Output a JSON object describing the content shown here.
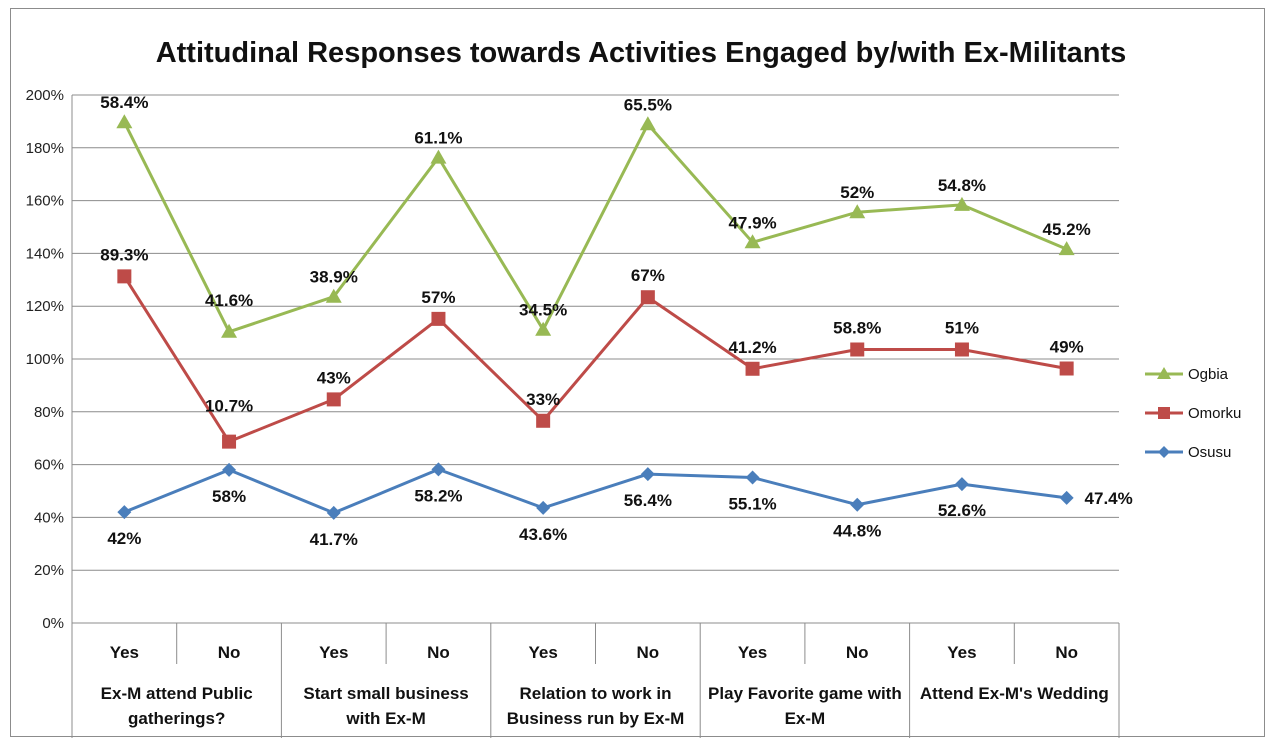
{
  "chart_data": {
    "type": "line",
    "title": "Attitudinal Responses towards Activities Engaged by/with Ex-Militants",
    "ylim": [
      0,
      200
    ],
    "yticks": [
      "0%",
      "20%",
      "40%",
      "60%",
      "80%",
      "100%",
      "120%",
      "140%",
      "160%",
      "180%",
      "200%"
    ],
    "grid": true,
    "legend_position": "right",
    "categories": [
      "Yes",
      "No",
      "Yes",
      "No",
      "Yes",
      "No",
      "Yes",
      "No",
      "Yes",
      "No"
    ],
    "groups": [
      "Ex-M attend Public gatherings?",
      "Start small business with Ex-M",
      "Relation to work in Business run by Ex-M",
      "Play Favorite game with Ex-M",
      "Attend Ex-M's Wedding"
    ],
    "series": [
      {
        "name": "Osusu",
        "color": "#4a7ebb",
        "marker": "diamond",
        "values": [
          42,
          58,
          41.7,
          58.2,
          43.6,
          56.4,
          55.1,
          44.8,
          52.6,
          47.4
        ],
        "labels": [
          "42%",
          "58%",
          "41.7%",
          "58.2%",
          "43.6%",
          "56.4%",
          "55.1%",
          "44.8%",
          "52.6%",
          "47.4%"
        ]
      },
      {
        "name": "Omorku",
        "color": "#be4b48",
        "marker": "square",
        "values": [
          131.3,
          68.7,
          84.7,
          115.2,
          76.6,
          123.4,
          96.3,
          103.6,
          103.6,
          96.4
        ],
        "labels": [
          "89.3%",
          "10.7%",
          "43%",
          "57%",
          "33%",
          "67%",
          "41.2%",
          "58.8%",
          "51%",
          "49%"
        ]
      },
      {
        "name": "Ogbia",
        "color": "#98b954",
        "marker": "triangle",
        "values": [
          189.7,
          110.3,
          123.6,
          176.3,
          111.1,
          188.9,
          144.2,
          155.6,
          158.4,
          141.6
        ],
        "labels": [
          "58.4%",
          "41.6%",
          "38.9%",
          "61.1%",
          "34.5%",
          "65.5%",
          "47.9%",
          "52%",
          "54.8%",
          "45.2%"
        ]
      }
    ]
  }
}
